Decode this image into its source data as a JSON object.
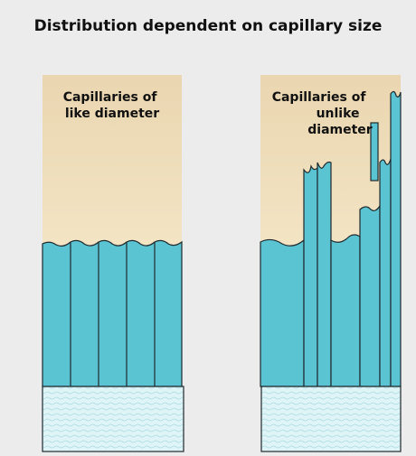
{
  "title": "Distribution dependent on capillary size",
  "panels": [
    {
      "label_lines": [
        "Capillaries of",
        "like diameter"
      ]
    },
    {
      "label_lines": [
        "Capillaries of",
        "unlike",
        "diameter"
      ]
    }
  ]
}
